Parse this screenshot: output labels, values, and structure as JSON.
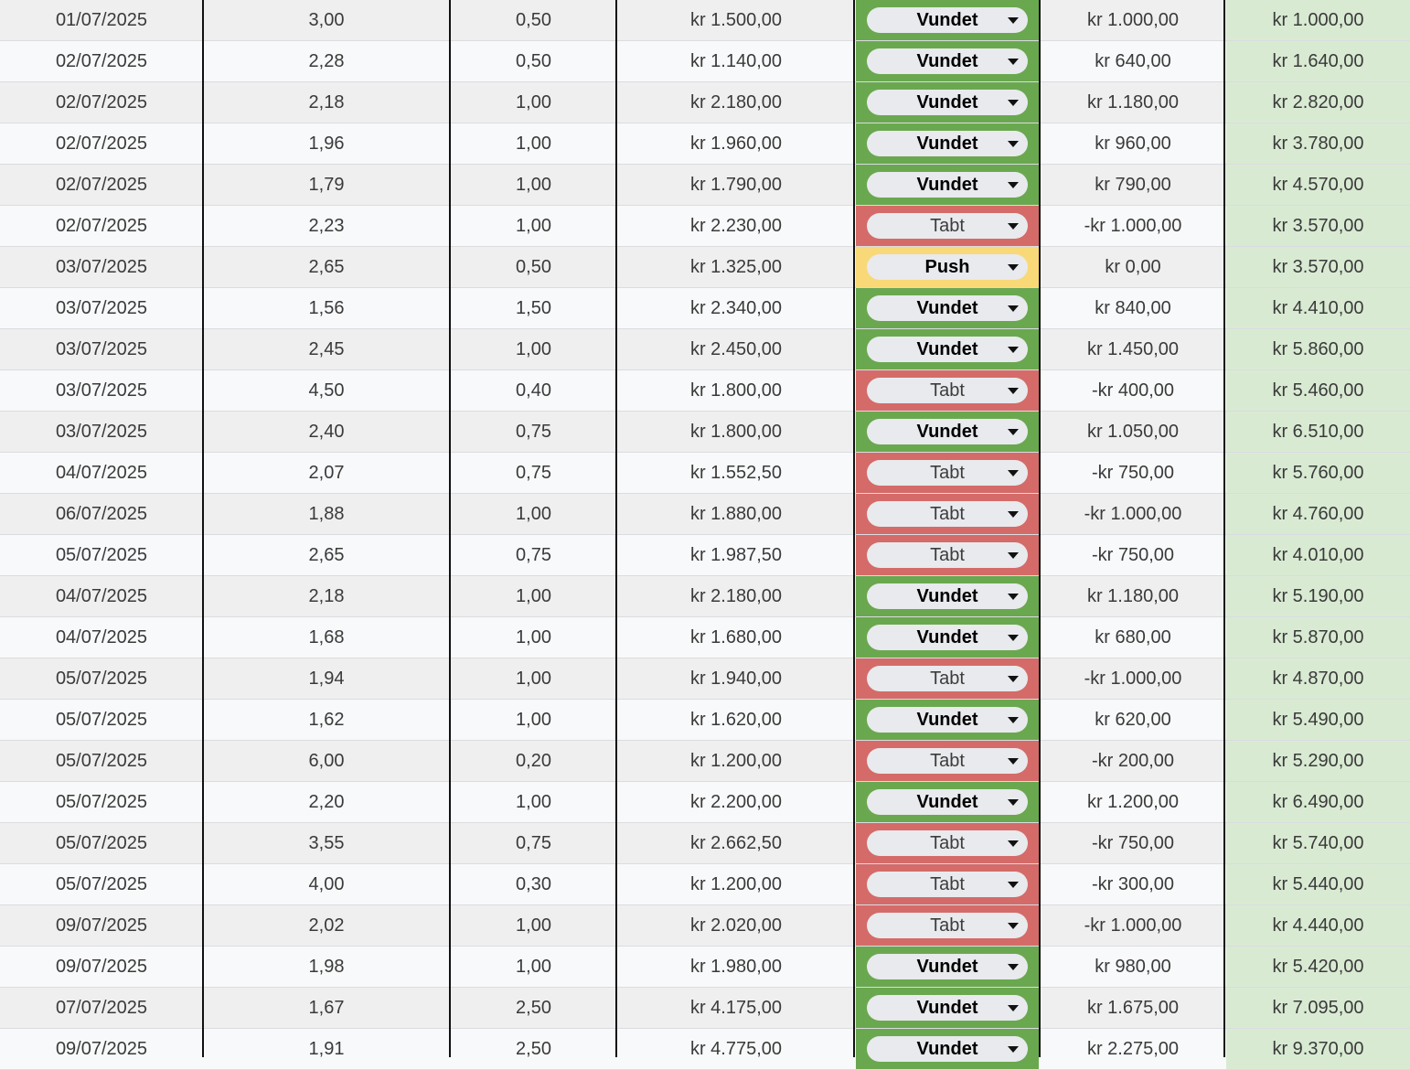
{
  "status_colors": {
    "Vundet": "#6aa84f",
    "Tabt": "#d46b69",
    "Push": "#f9d878"
  },
  "rows": [
    {
      "date": "01/07/2025",
      "odds": "3,00",
      "stake": "0,50",
      "payout": "kr 1.500,00",
      "result": "Vundet",
      "profit": "kr 1.000,00",
      "balance": "kr 1.000,00"
    },
    {
      "date": "02/07/2025",
      "odds": "2,28",
      "stake": "0,50",
      "payout": "kr 1.140,00",
      "result": "Vundet",
      "profit": "kr 640,00",
      "balance": "kr 1.640,00"
    },
    {
      "date": "02/07/2025",
      "odds": "2,18",
      "stake": "1,00",
      "payout": "kr 2.180,00",
      "result": "Vundet",
      "profit": "kr 1.180,00",
      "balance": "kr 2.820,00"
    },
    {
      "date": "02/07/2025",
      "odds": "1,96",
      "stake": "1,00",
      "payout": "kr 1.960,00",
      "result": "Vundet",
      "profit": "kr 960,00",
      "balance": "kr 3.780,00"
    },
    {
      "date": "02/07/2025",
      "odds": "1,79",
      "stake": "1,00",
      "payout": "kr 1.790,00",
      "result": "Vundet",
      "profit": "kr 790,00",
      "balance": "kr 4.570,00"
    },
    {
      "date": "02/07/2025",
      "odds": "2,23",
      "stake": "1,00",
      "payout": "kr 2.230,00",
      "result": "Tabt",
      "profit": "-kr 1.000,00",
      "balance": "kr 3.570,00"
    },
    {
      "date": "03/07/2025",
      "odds": "2,65",
      "stake": "0,50",
      "payout": "kr 1.325,00",
      "result": "Push",
      "profit": "kr 0,00",
      "balance": "kr 3.570,00"
    },
    {
      "date": "03/07/2025",
      "odds": "1,56",
      "stake": "1,50",
      "payout": "kr 2.340,00",
      "result": "Vundet",
      "profit": "kr 840,00",
      "balance": "kr 4.410,00"
    },
    {
      "date": "03/07/2025",
      "odds": "2,45",
      "stake": "1,00",
      "payout": "kr 2.450,00",
      "result": "Vundet",
      "profit": "kr 1.450,00",
      "balance": "kr 5.860,00"
    },
    {
      "date": "03/07/2025",
      "odds": "4,50",
      "stake": "0,40",
      "payout": "kr 1.800,00",
      "result": "Tabt",
      "profit": "-kr 400,00",
      "balance": "kr 5.460,00"
    },
    {
      "date": "03/07/2025",
      "odds": "2,40",
      "stake": "0,75",
      "payout": "kr 1.800,00",
      "result": "Vundet",
      "profit": "kr 1.050,00",
      "balance": "kr 6.510,00"
    },
    {
      "date": "04/07/2025",
      "odds": "2,07",
      "stake": "0,75",
      "payout": "kr 1.552,50",
      "result": "Tabt",
      "profit": "-kr 750,00",
      "balance": "kr 5.760,00"
    },
    {
      "date": "06/07/2025",
      "odds": "1,88",
      "stake": "1,00",
      "payout": "kr 1.880,00",
      "result": "Tabt",
      "profit": "-kr 1.000,00",
      "balance": "kr 4.760,00"
    },
    {
      "date": "05/07/2025",
      "odds": "2,65",
      "stake": "0,75",
      "payout": "kr 1.987,50",
      "result": "Tabt",
      "profit": "-kr 750,00",
      "balance": "kr 4.010,00"
    },
    {
      "date": "04/07/2025",
      "odds": "2,18",
      "stake": "1,00",
      "payout": "kr 2.180,00",
      "result": "Vundet",
      "profit": "kr 1.180,00",
      "balance": "kr 5.190,00"
    },
    {
      "date": "04/07/2025",
      "odds": "1,68",
      "stake": "1,00",
      "payout": "kr 1.680,00",
      "result": "Vundet",
      "profit": "kr 680,00",
      "balance": "kr 5.870,00"
    },
    {
      "date": "05/07/2025",
      "odds": "1,94",
      "stake": "1,00",
      "payout": "kr 1.940,00",
      "result": "Tabt",
      "profit": "-kr 1.000,00",
      "balance": "kr 4.870,00"
    },
    {
      "date": "05/07/2025",
      "odds": "1,62",
      "stake": "1,00",
      "payout": "kr 1.620,00",
      "result": "Vundet",
      "profit": "kr 620,00",
      "balance": "kr 5.490,00"
    },
    {
      "date": "05/07/2025",
      "odds": "6,00",
      "stake": "0,20",
      "payout": "kr 1.200,00",
      "result": "Tabt",
      "profit": "-kr 200,00",
      "balance": "kr 5.290,00"
    },
    {
      "date": "05/07/2025",
      "odds": "2,20",
      "stake": "1,00",
      "payout": "kr 2.200,00",
      "result": "Vundet",
      "profit": "kr 1.200,00",
      "balance": "kr 6.490,00"
    },
    {
      "date": "05/07/2025",
      "odds": "3,55",
      "stake": "0,75",
      "payout": "kr 2.662,50",
      "result": "Tabt",
      "profit": "-kr 750,00",
      "balance": "kr 5.740,00"
    },
    {
      "date": "05/07/2025",
      "odds": "4,00",
      "stake": "0,30",
      "payout": "kr 1.200,00",
      "result": "Tabt",
      "profit": "-kr 300,00",
      "balance": "kr 5.440,00"
    },
    {
      "date": "09/07/2025",
      "odds": "2,02",
      "stake": "1,00",
      "payout": "kr 2.020,00",
      "result": "Tabt",
      "profit": "-kr 1.000,00",
      "balance": "kr 4.440,00"
    },
    {
      "date": "09/07/2025",
      "odds": "1,98",
      "stake": "1,00",
      "payout": "kr 1.980,00",
      "result": "Vundet",
      "profit": "kr 980,00",
      "balance": "kr 5.420,00"
    },
    {
      "date": "07/07/2025",
      "odds": "1,67",
      "stake": "2,50",
      "payout": "kr 4.175,00",
      "result": "Vundet",
      "profit": "kr 1.675,00",
      "balance": "kr 7.095,00"
    },
    {
      "date": "09/07/2025",
      "odds": "1,91",
      "stake": "2,50",
      "payout": "kr 4.775,00",
      "result": "Vundet",
      "profit": "kr 2.275,00",
      "balance": "kr 9.370,00"
    }
  ]
}
